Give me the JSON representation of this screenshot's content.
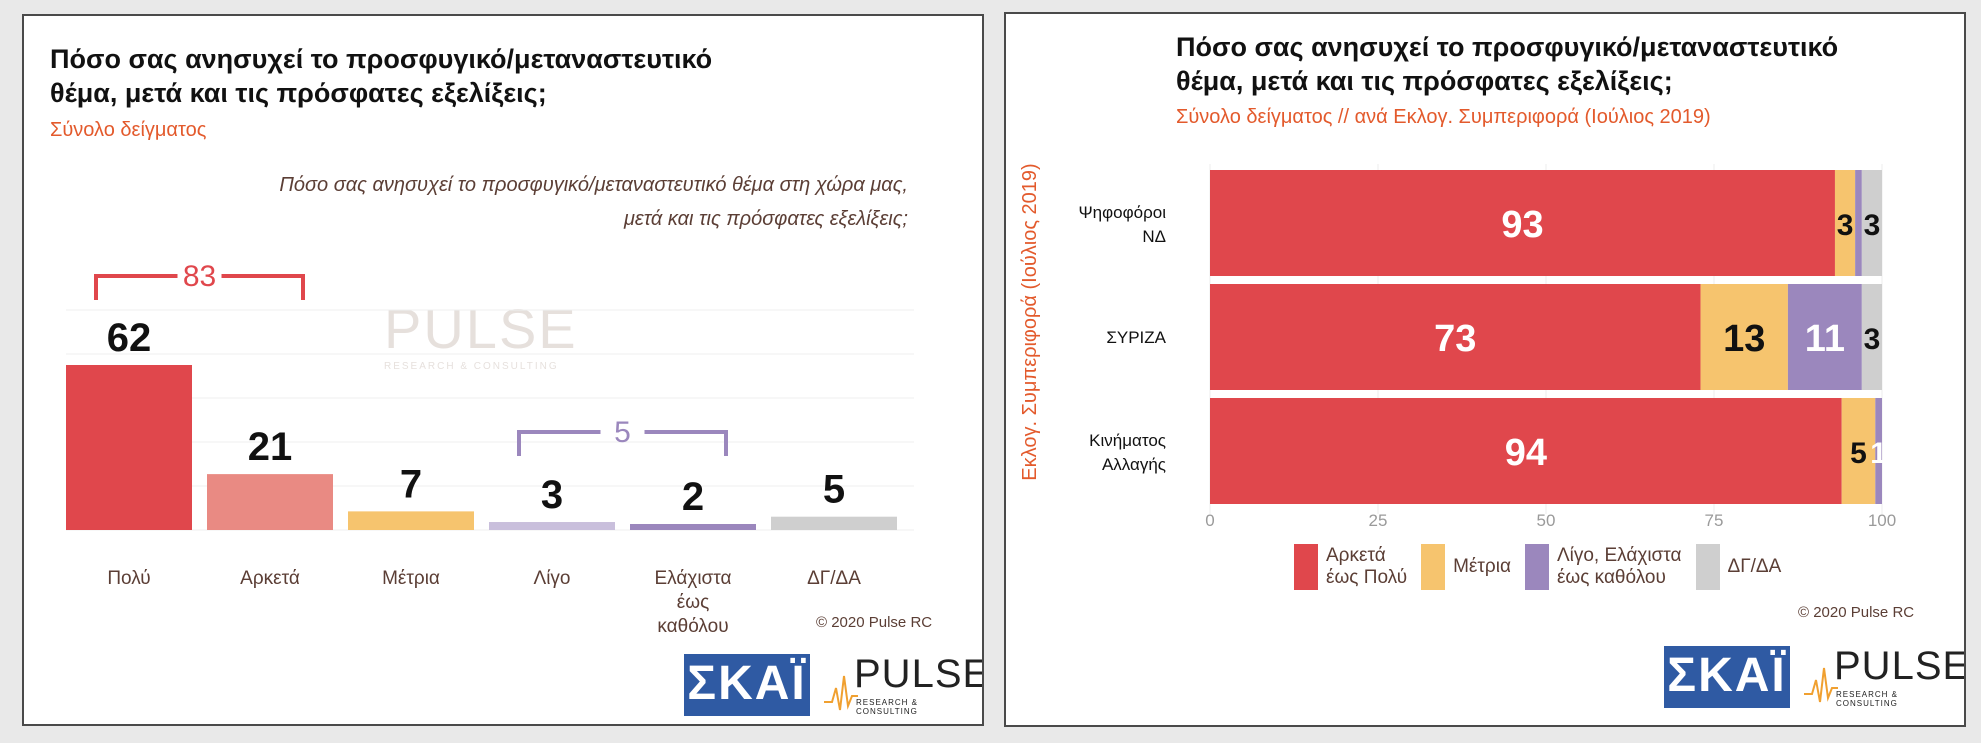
{
  "left_panel": {
    "title_line1": "Πόσο σας ανησυχεί το προσφυγικό/μεταναστευτικό",
    "title_line2": "θέμα, μετά και τις πρόσφατες εξελίξεις;",
    "subtitle": "Σύνολο δείγματος",
    "question_line1": "Πόσο σας ανησυχεί το προσφυγικό/μεταναστευτικό θέμα στη χώρα μας,",
    "question_line2": "μετά και τις πρόσφατες εξελίξεις;",
    "copyright": "© 2020 Pulse RC"
  },
  "right_panel": {
    "title_line1": "Πόσο σας ανησυχεί το προσφυγικό/μεταναστευτικό",
    "title_line2": "θέμα, μετά και τις πρόσφατες εξελίξεις;",
    "subtitle": "Σύνολο δείγματος // ανά Εκλογ. Συμπεριφορά (Ιούλιος 2019)",
    "y_axis_title": "Εκλογ. Συμπεριφορά (Ιούλιος 2019)",
    "copyright": "© 2020 Pulse RC"
  },
  "logos": {
    "skai": "ΣΚΑΪ",
    "pulse": "PULSE",
    "pulse_sub": "RESEARCH & CONSULTING"
  },
  "colors": {
    "red": "#e0474c",
    "salmon": "#e98a83",
    "yellow": "#f6c46e",
    "purple": "#9b87bd",
    "grey": "#cfcfcf",
    "orange_text": "#e35a2c",
    "skai_blue": "#2f5aa3"
  },
  "chart_data": [
    {
      "type": "bar",
      "categories": [
        "Πολύ",
        "Αρκετά",
        "Μέτρια",
        "Λίγο",
        "Ελάχιστα\nέως\nκαθόλου",
        "ΔΓ/ΔΑ"
      ],
      "values": [
        62,
        21,
        7,
        3,
        2,
        5
      ],
      "bar_colors": [
        "#e0474c",
        "#e98a83",
        "#f6c46e",
        "#c9bfdc",
        "#9b87bd",
        "#cfcfcf"
      ],
      "brackets": [
        {
          "from": 0,
          "to": 1,
          "label": "83",
          "color": "#e0474c"
        },
        {
          "from": 3,
          "to": 4,
          "label": "5",
          "color": "#9b87bd"
        }
      ],
      "ylim": [
        0,
        70
      ],
      "grid": true
    },
    {
      "type": "bar",
      "orientation": "horizontal",
      "stacked": true,
      "categories": [
        "Ψηφοφόροι\nΝΔ",
        "ΣΥΡΙΖΑ",
        "Κινήματος\nΑλλαγής"
      ],
      "series": [
        {
          "name": "Αρκετά\nέως Πολύ",
          "color": "#e0474c",
          "values": [
            93,
            73,
            94
          ],
          "labels": [
            "93",
            "73",
            "94"
          ]
        },
        {
          "name": "Μέτρια",
          "color": "#f6c46e",
          "values": [
            3,
            13,
            5
          ],
          "labels": [
            "3",
            "13",
            "5"
          ]
        },
        {
          "name": "Λίγο, Ελάχιστα\nέως καθόλου",
          "color": "#9b87bd",
          "values": [
            1,
            11,
            1
          ],
          "labels": [
            "",
            "11",
            "1"
          ]
        },
        {
          "name": "ΔΓ/ΔΑ",
          "color": "#cfcfcf",
          "values": [
            3,
            3,
            0
          ],
          "labels": [
            "3",
            "3",
            ""
          ]
        }
      ],
      "xlim": [
        0,
        100
      ],
      "xticks": [
        "0",
        "25",
        "50",
        "75",
        "100"
      ],
      "legend_position": "bottom"
    }
  ]
}
